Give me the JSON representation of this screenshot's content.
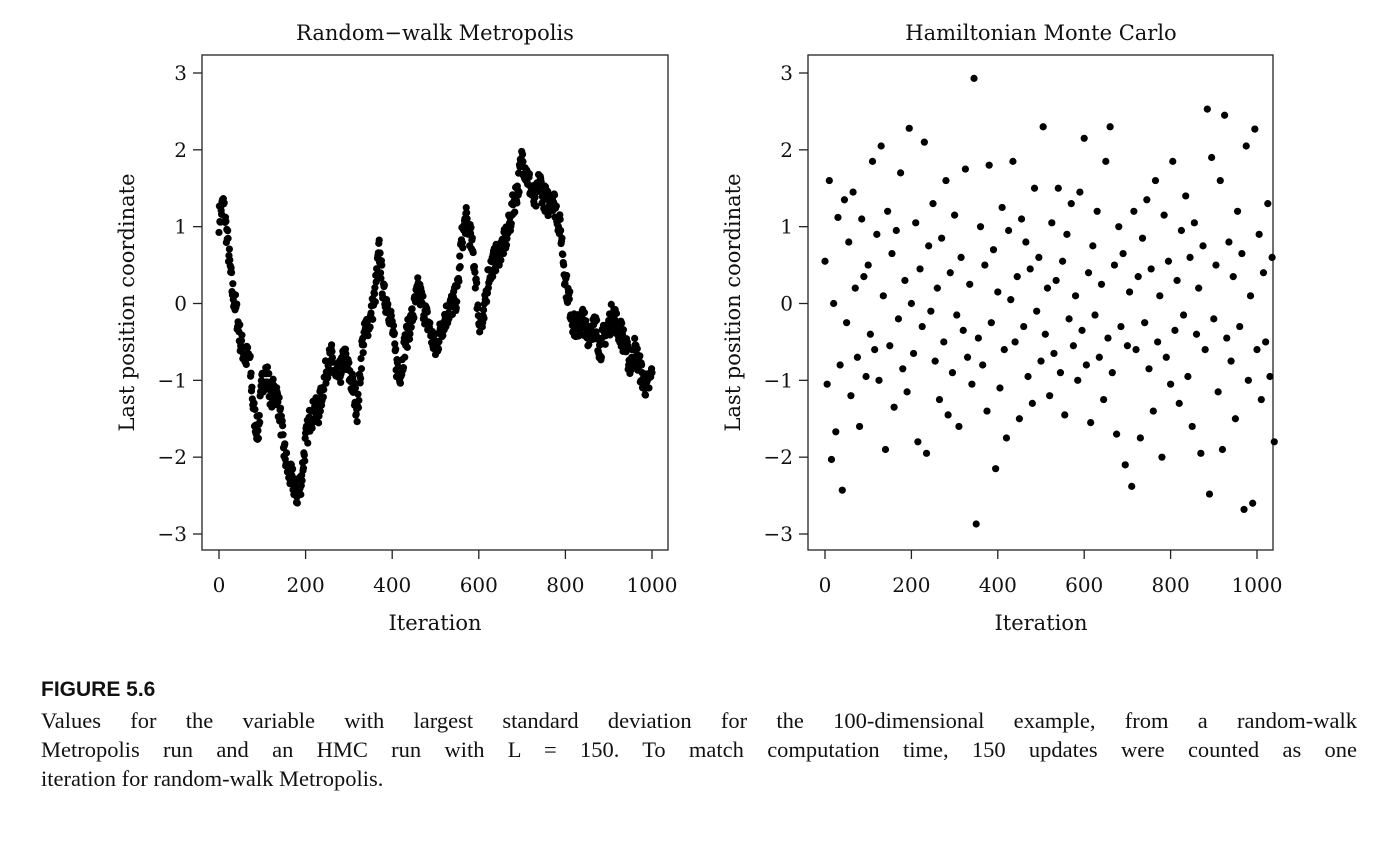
{
  "chart_data": [
    {
      "type": "scatter",
      "title": "Random−walk Metropolis",
      "xlabel": "Iteration",
      "ylabel": "Last position coordinate",
      "xlim": [
        0,
        1000
      ],
      "ylim": [
        -3,
        3
      ],
      "xticks": [
        "0",
        "200",
        "400",
        "600",
        "800",
        "1000"
      ],
      "yticks": [
        "−3",
        "−2",
        "−1",
        "0",
        "1",
        "2",
        "3"
      ],
      "x_step": 10,
      "values": [
        1.1,
        1.3,
        0.8,
        0.2,
        -0.1,
        -0.5,
        -0.7,
        -0.7,
        -1.4,
        -1.7,
        -1.0,
        -0.9,
        -1.2,
        -1.1,
        -1.4,
        -1.9,
        -2.2,
        -2.3,
        -2.5,
        -2.3,
        -1.8,
        -1.5,
        -1.4,
        -1.4,
        -1.1,
        -0.8,
        -0.7,
        -1.0,
        -0.9,
        -0.7,
        -0.9,
        -1.1,
        -1.4,
        -0.6,
        -0.3,
        -0.2,
        0.1,
        0.7,
        0.1,
        0.0,
        -0.3,
        -0.8,
        -0.9,
        -0.5,
        -0.3,
        -0.1,
        0.2,
        0.0,
        -0.2,
        -0.4,
        -0.6,
        -0.4,
        -0.2,
        -0.1,
        0.0,
        0.1,
        0.8,
        1.1,
        0.9,
        0.5,
        -0.2,
        -0.3,
        0.3,
        0.5,
        0.6,
        0.7,
        0.8,
        1.0,
        1.3,
        1.5,
        1.9,
        1.7,
        1.5,
        1.3,
        1.6,
        1.4,
        1.3,
        1.4,
        1.2,
        0.9,
        0.3,
        0.0,
        -0.3,
        -0.3,
        -0.2,
        -0.4,
        -0.3,
        -0.3,
        -0.6,
        -0.4,
        -0.3,
        -0.1,
        -0.3,
        -0.4,
        -0.6,
        -0.8,
        -0.6,
        -0.8,
        -1.0,
        -1.1,
        -0.9
      ],
      "grid": false
    },
    {
      "type": "scatter",
      "title": "Hamiltonian Monte Carlo",
      "xlabel": "Iteration",
      "ylabel": "Last position coordinate",
      "xlim": [
        0,
        1000
      ],
      "ylim": [
        -3,
        3
      ],
      "xticks": [
        "0",
        "200",
        "400",
        "600",
        "800",
        "1000"
      ],
      "yticks": [
        "−3",
        "−2",
        "−1",
        "0",
        "1",
        "2",
        "3"
      ],
      "x_step": 5,
      "values": [
        0.55,
        -1.05,
        1.6,
        -2.03,
        0.0,
        -1.67,
        1.12,
        -0.8,
        -2.43,
        1.35,
        -0.25,
        0.8,
        -1.2,
        1.45,
        0.2,
        -0.7,
        -1.6,
        1.1,
        0.35,
        -0.95,
        0.5,
        -0.4,
        1.85,
        -0.6,
        0.9,
        -1.0,
        2.05,
        0.1,
        -1.9,
        1.2,
        -0.55,
        0.65,
        -1.35,
        0.95,
        -0.2,
        1.7,
        -0.85,
        0.3,
        -1.15,
        2.28,
        0.0,
        -0.65,
        1.05,
        -1.8,
        0.45,
        -0.3,
        2.1,
        -1.95,
        0.75,
        -0.1,
        1.3,
        -0.75,
        0.2,
        -1.25,
        0.85,
        -0.5,
        1.6,
        -1.45,
        0.4,
        -0.9,
        1.15,
        -0.15,
        -1.6,
        0.6,
        -0.35,
        1.75,
        -0.7,
        0.25,
        -1.05,
        2.93,
        -2.87,
        -0.45,
        1.0,
        -0.8,
        0.5,
        -1.4,
        1.8,
        -0.25,
        0.7,
        -2.15,
        0.15,
        -1.1,
        1.25,
        -0.6,
        -1.75,
        0.95,
        0.05,
        1.85,
        -0.5,
        0.35,
        -1.5,
        1.1,
        -0.3,
        0.8,
        -0.95,
        0.45,
        -1.3,
        1.5,
        -0.1,
        0.6,
        -0.75,
        2.3,
        -0.4,
        0.2,
        -1.2,
        1.05,
        -0.65,
        0.3,
        1.5,
        -0.9,
        0.55,
        -1.45,
        0.9,
        -0.2,
        1.3,
        -0.55,
        0.1,
        -1.0,
        1.45,
        -0.35,
        2.15,
        -0.8,
        0.4,
        -1.55,
        0.75,
        -0.15,
        1.2,
        -0.7,
        0.25,
        -1.25,
        1.85,
        -0.45,
        2.3,
        -0.9,
        0.5,
        -1.7,
        1.0,
        -0.3,
        0.65,
        -2.1,
        -0.55,
        0.15,
        -2.38,
        1.2,
        -0.6,
        0.35,
        -1.75,
        0.85,
        -0.25,
        1.35,
        -0.85,
        0.45,
        -1.4,
        1.6,
        -0.5,
        0.1,
        -2.0,
        1.15,
        -0.7,
        0.55,
        -1.05,
        1.85,
        -0.35,
        0.3,
        -1.3,
        0.95,
        -0.15,
        1.4,
        -0.95,
        0.6,
        -1.6,
        1.05,
        -0.4,
        0.2,
        -1.95,
        0.75,
        -0.6,
        2.53,
        -2.48,
        1.9,
        -0.2,
        0.5,
        -1.15,
        1.6,
        -1.9,
        2.45,
        -0.45,
        0.8,
        -0.75,
        0.35,
        -1.5,
        1.2,
        -0.3,
        0.65,
        -2.68,
        2.05,
        -1.0,
        0.1,
        -2.6,
        2.27,
        -0.6,
        0.9,
        -1.25,
        0.4,
        -0.5,
        1.3,
        -0.95,
        0.6,
        -1.8
      ],
      "grid": false
    }
  ],
  "caption": {
    "label": "FIGURE 5.6",
    "lines": [
      "Values for the variable with largest standard deviation for the 100-dimensional example, from a random-walk",
      "Metropolis run and an HMC run with L = 150. To match computation time, 150 updates were counted as one",
      "iteration for random-walk Metropolis."
    ]
  }
}
